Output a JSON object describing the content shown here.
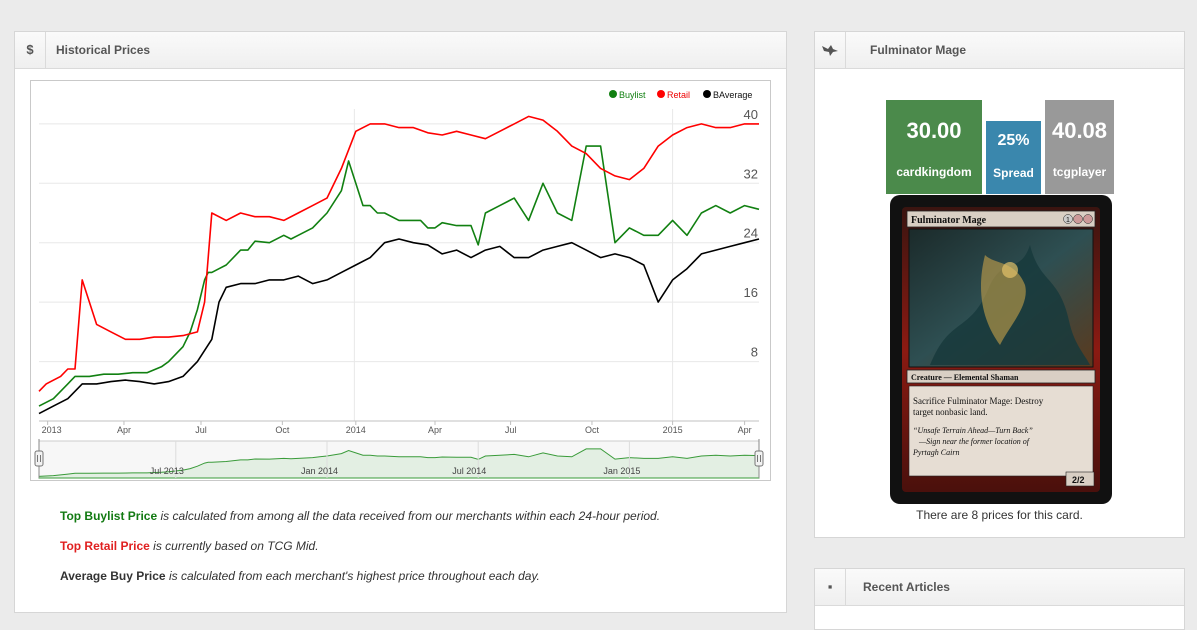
{
  "historical": {
    "icon": "$",
    "title": "Historical Prices"
  },
  "chart_data": {
    "type": "line",
    "legend": [
      "Buylist",
      "Retail",
      "BAverage"
    ],
    "legend_position": "top-right",
    "y_ticks": [
      "8",
      "16",
      "24",
      "32",
      "40"
    ],
    "ylim": [
      0,
      42
    ],
    "x_ticks": [
      "2013",
      "Apr",
      "Jul",
      "Oct",
      "2014",
      "Apr",
      "Jul",
      "Oct",
      "2015",
      "Apr"
    ],
    "navigator_ticks": [
      "Jul 2013",
      "Jan 2014",
      "Jul 2014",
      "Jan 2015"
    ],
    "colors": {
      "buylist": "#118011",
      "retail": "#ff0000",
      "average": "#000000",
      "navigator": "#3a9b3a"
    },
    "series": [
      {
        "name": "Buylist",
        "x": [
          0,
          0.02,
          0.04,
          0.05,
          0.07,
          0.09,
          0.11,
          0.13,
          0.15,
          0.17,
          0.18,
          0.2,
          0.21,
          0.22,
          0.23,
          0.235,
          0.24,
          0.25,
          0.26,
          0.28,
          0.29,
          0.3,
          0.32,
          0.34,
          0.35,
          0.36,
          0.38,
          0.39,
          0.4,
          0.42,
          0.43,
          0.44,
          0.45,
          0.46,
          0.47,
          0.48,
          0.5,
          0.52,
          0.53,
          0.54,
          0.55,
          0.56,
          0.58,
          0.6,
          0.61,
          0.62,
          0.64,
          0.66,
          0.68,
          0.7,
          0.72,
          0.74,
          0.76,
          0.78,
          0.8,
          0.82,
          0.84,
          0.86,
          0.88,
          0.9,
          0.92,
          0.94,
          0.96,
          0.98,
          1
        ],
        "values": [
          2,
          3,
          5,
          6,
          6,
          6.3,
          6.3,
          6.5,
          6.5,
          7.3,
          8,
          10,
          12,
          15,
          19,
          20,
          20,
          20.5,
          21,
          23,
          23,
          24.2,
          24,
          25,
          24.5,
          25,
          26,
          27,
          28,
          31,
          35,
          32,
          29,
          29,
          28,
          28,
          27,
          27,
          27,
          26,
          26,
          26.7,
          26.3,
          26.3,
          23.7,
          28,
          29,
          30,
          27,
          32,
          28,
          27,
          37,
          37,
          24,
          26,
          25,
          25,
          27,
          25,
          28,
          29,
          28,
          29,
          28.5
        ]
      },
      {
        "name": "Retail",
        "x": [
          0,
          0.01,
          0.03,
          0.04,
          0.05,
          0.06,
          0.08,
          0.1,
          0.12,
          0.14,
          0.16,
          0.18,
          0.2,
          0.22,
          0.23,
          0.24,
          0.26,
          0.28,
          0.3,
          0.32,
          0.34,
          0.36,
          0.38,
          0.4,
          0.42,
          0.44,
          0.46,
          0.48,
          0.5,
          0.52,
          0.54,
          0.56,
          0.58,
          0.6,
          0.62,
          0.64,
          0.66,
          0.68,
          0.7,
          0.72,
          0.74,
          0.76,
          0.78,
          0.8,
          0.82,
          0.84,
          0.86,
          0.88,
          0.9,
          0.92,
          0.94,
          0.96,
          0.98,
          1
        ],
        "values": [
          4,
          5,
          6,
          7,
          7,
          19,
          13,
          12,
          11,
          11,
          11.3,
          11.3,
          11.5,
          12,
          16,
          28,
          27,
          28,
          27.5,
          27.5,
          27,
          28,
          29,
          30,
          34,
          39,
          40,
          40,
          39.5,
          39.5,
          38.8,
          38.5,
          39,
          38.5,
          38,
          39,
          40,
          41,
          40.5,
          39,
          37,
          36,
          34,
          33,
          32.5,
          34,
          37,
          38.5,
          39.5,
          40,
          39.5,
          39.5,
          40,
          40
        ]
      },
      {
        "name": "BAverage",
        "x": [
          0,
          0.02,
          0.04,
          0.06,
          0.08,
          0.1,
          0.12,
          0.14,
          0.16,
          0.18,
          0.2,
          0.22,
          0.24,
          0.25,
          0.26,
          0.28,
          0.3,
          0.32,
          0.34,
          0.36,
          0.38,
          0.4,
          0.42,
          0.44,
          0.46,
          0.48,
          0.5,
          0.52,
          0.54,
          0.56,
          0.58,
          0.6,
          0.62,
          0.64,
          0.66,
          0.68,
          0.7,
          0.72,
          0.74,
          0.76,
          0.78,
          0.8,
          0.82,
          0.84,
          0.86,
          0.88,
          0.9,
          0.92,
          0.94,
          0.96,
          0.98,
          1
        ],
        "values": [
          1,
          2,
          3,
          5,
          5,
          5.3,
          5.5,
          5.3,
          5,
          5.3,
          6,
          8,
          11,
          16,
          18,
          18.5,
          18.5,
          19,
          19,
          19.5,
          18.5,
          19,
          20,
          21,
          22,
          24,
          24.5,
          24,
          23.7,
          22.5,
          23,
          22,
          23,
          23.5,
          22,
          22,
          23,
          23.5,
          24,
          23,
          22,
          22.5,
          22,
          21,
          16,
          19,
          20.5,
          22.5,
          23,
          23.5,
          24,
          24.5
        ]
      }
    ]
  },
  "descriptions": {
    "buylist_label": "Top Buylist Price",
    "buylist_text": " is calculated from among all the data received from our merchants within each 24-hour period.",
    "retail_label": "Top Retail Price",
    "retail_text": " is currently based on TCG Mid.",
    "average_label": "Average Buy Price",
    "average_text": " is calculated from each merchant's highest price throughout each day."
  },
  "card_panel": {
    "icon": "bird-icon",
    "title": "Fulminator Mage",
    "buy_price": "30.00",
    "buy_source": "cardkingdom",
    "spread": "25%",
    "spread_label": "Spread",
    "sell_price": "40.08",
    "sell_source": "tcgplayer",
    "colors": {
      "buy": "#4b8a4b",
      "spread": "#3a87ad",
      "sell": "#999999"
    },
    "card": {
      "name": "Fulminator Mage",
      "mana_cost": "1",
      "type_line": "Creature — Elemental Shaman",
      "rules_text": "Sacrifice Fulminator Mage: Destroy target nonbasic land.",
      "flavor_text_1": "\"Unsafe Terrain Ahead—Turn Back\"",
      "flavor_text_2": "—Sign near the former location of Pyrtagh Cairn",
      "power_toughness": "2/2"
    },
    "prices_count_text": "There are 8 prices for this card."
  },
  "articles": {
    "title": "Recent Articles"
  }
}
